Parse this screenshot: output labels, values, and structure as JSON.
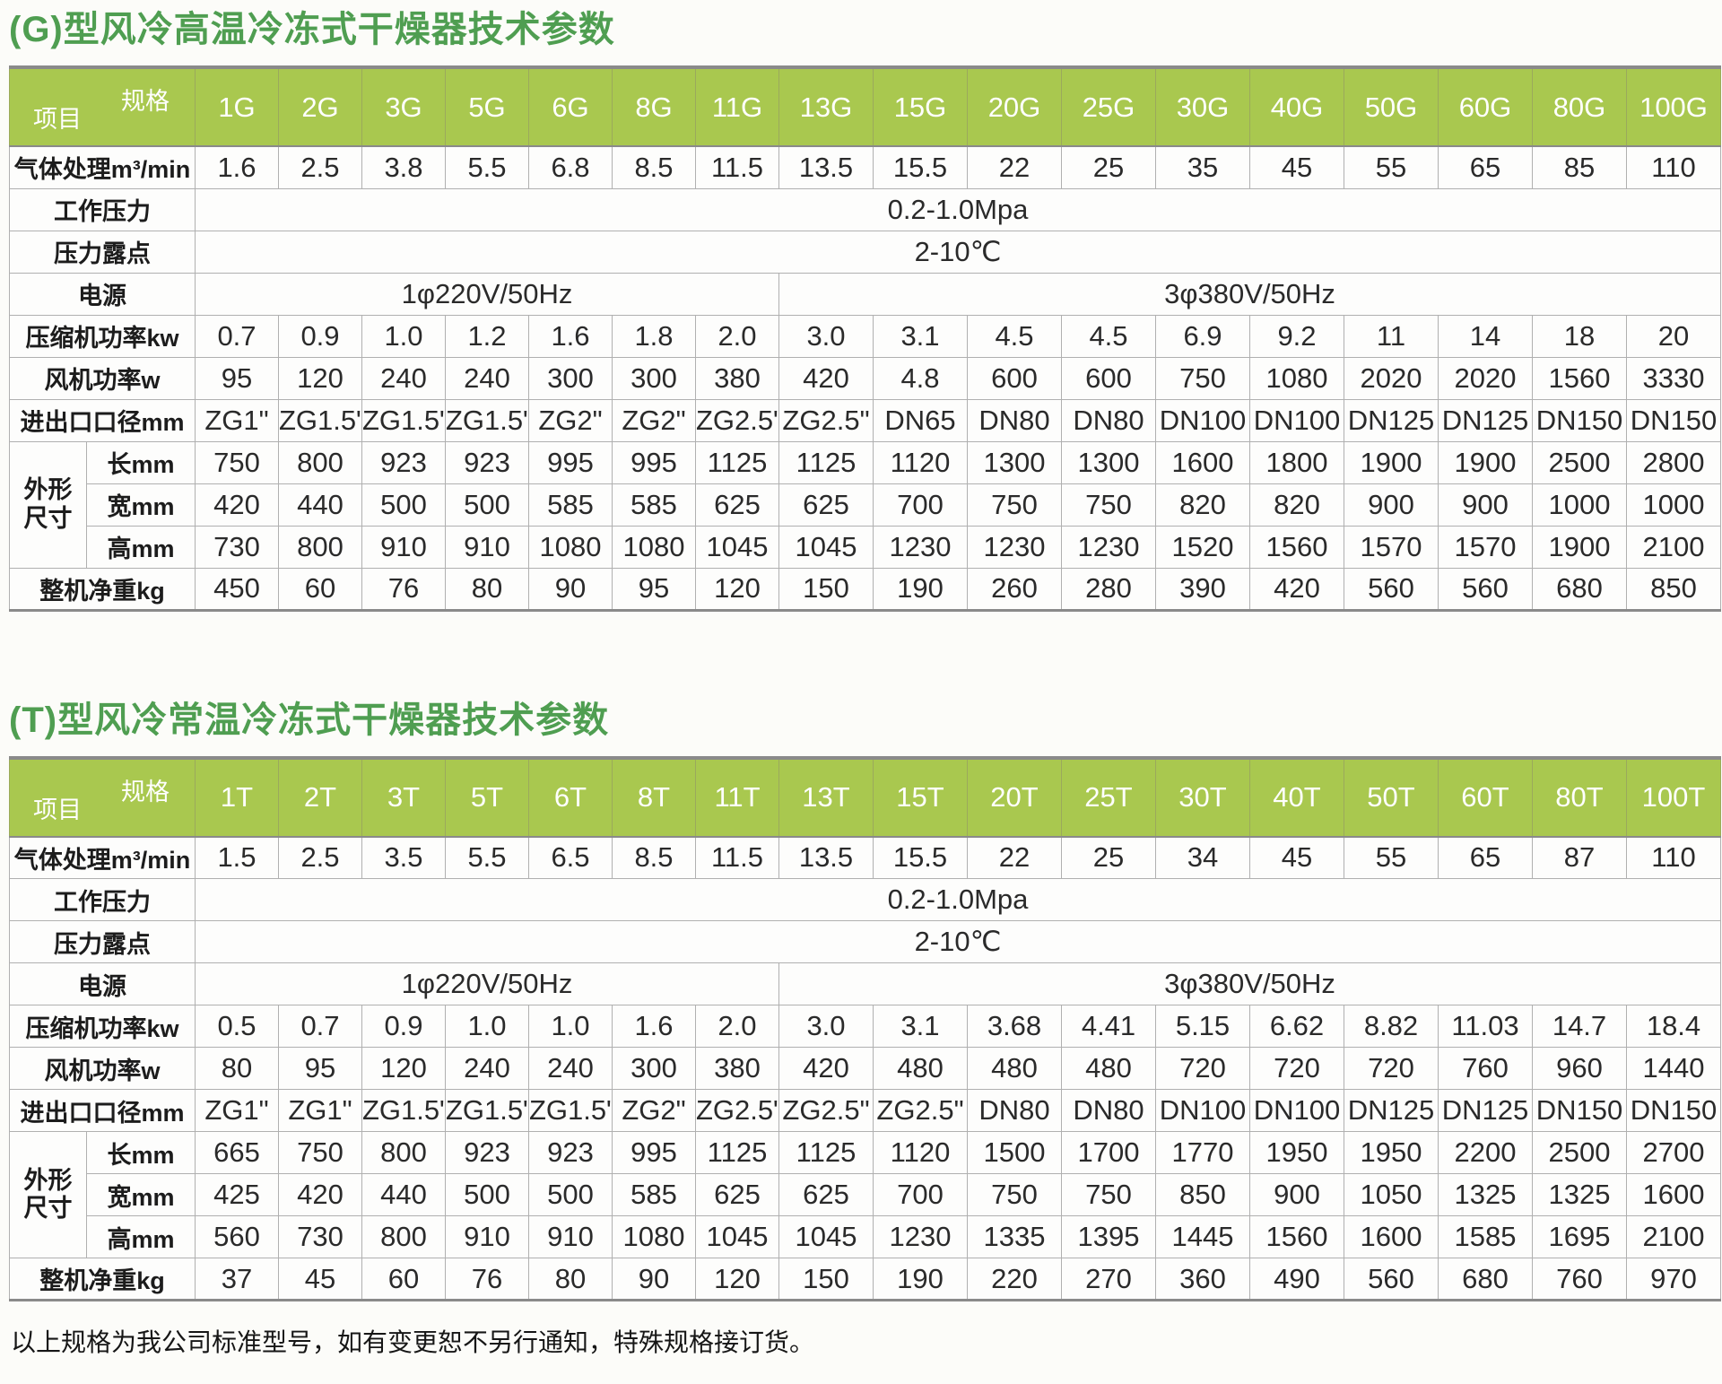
{
  "footnote": "以上规格为我公司标准型号，如有变更恕不另行通知，特殊规格接订货。",
  "colors": {
    "title_green": "#4f9e51",
    "header_green": "#a9c84f",
    "header_text": "#ffffff"
  },
  "tables": [
    {
      "title": "(G)型风冷高温冷冻式干燥器技术参数",
      "corner": {
        "spec": "规格",
        "item": "项目"
      },
      "models": [
        "1G",
        "2G",
        "3G",
        "5G",
        "6G",
        "8G",
        "11G",
        "13G",
        "15G",
        "20G",
        "25G",
        "30G",
        "40G",
        "50G",
        "60G",
        "80G",
        "100G"
      ],
      "rows": [
        {
          "kind": "values",
          "label": "气体处理m³/min",
          "values": [
            "1.6",
            "2.5",
            "3.8",
            "5.5",
            "6.8",
            "8.5",
            "11.5",
            "13.5",
            "15.5",
            "22",
            "25",
            "35",
            "45",
            "55",
            "65",
            "85",
            "110"
          ]
        },
        {
          "kind": "span",
          "label": "工作压力",
          "value": "0.2-1.0Mpa"
        },
        {
          "kind": "span",
          "label": "压力露点",
          "value": "2-10℃"
        },
        {
          "kind": "split",
          "label": "电源",
          "cells": [
            {
              "value": "1φ220V/50Hz",
              "span": 7
            },
            {
              "value": "3φ380V/50Hz",
              "span": 10
            }
          ]
        },
        {
          "kind": "values",
          "label": "压缩机功率kw",
          "values": [
            "0.7",
            "0.9",
            "1.0",
            "1.2",
            "1.6",
            "1.8",
            "2.0",
            "3.0",
            "3.1",
            "4.5",
            "4.5",
            "6.9",
            "9.2",
            "11",
            "14",
            "18",
            "20"
          ]
        },
        {
          "kind": "values",
          "label": "风机功率w",
          "values": [
            "95",
            "120",
            "240",
            "240",
            "300",
            "300",
            "380",
            "420",
            "4.8",
            "600",
            "600",
            "750",
            "1080",
            "2020",
            "2020",
            "1560",
            "3330"
          ]
        },
        {
          "kind": "values",
          "label": "进出口口径mm",
          "values": [
            "ZG1\"",
            "ZG1.5\"",
            "ZG1.5\"",
            "ZG1.5\"",
            "ZG2\"",
            "ZG2\"",
            "ZG2.5\"",
            "ZG2.5\"",
            "DN65",
            "DN80",
            "DN80",
            "DN100",
            "DN100",
            "DN125",
            "DN125",
            "DN150",
            "DN150"
          ]
        },
        {
          "kind": "group",
          "label": "外形尺寸",
          "subrows": [
            {
              "label": "长mm",
              "values": [
                "750",
                "800",
                "923",
                "923",
                "995",
                "995",
                "1125",
                "1125",
                "1120",
                "1300",
                "1300",
                "1600",
                "1800",
                "1900",
                "1900",
                "2500",
                "2800"
              ]
            },
            {
              "label": "宽mm",
              "values": [
                "420",
                "440",
                "500",
                "500",
                "585",
                "585",
                "625",
                "625",
                "700",
                "750",
                "750",
                "820",
                "820",
                "900",
                "900",
                "1000",
                "1000"
              ]
            },
            {
              "label": "高mm",
              "values": [
                "730",
                "800",
                "910",
                "910",
                "1080",
                "1080",
                "1045",
                "1045",
                "1230",
                "1230",
                "1230",
                "1520",
                "1560",
                "1570",
                "1570",
                "1900",
                "2100"
              ]
            }
          ]
        },
        {
          "kind": "values",
          "label": "整机净重kg",
          "values": [
            "450",
            "60",
            "76",
            "80",
            "90",
            "95",
            "120",
            "150",
            "190",
            "260",
            "280",
            "390",
            "420",
            "560",
            "560",
            "680",
            "850"
          ]
        }
      ]
    },
    {
      "title": "(T)型风冷常温冷冻式干燥器技术参数",
      "corner": {
        "spec": "规格",
        "item": "项目"
      },
      "models": [
        "1T",
        "2T",
        "3T",
        "5T",
        "6T",
        "8T",
        "11T",
        "13T",
        "15T",
        "20T",
        "25T",
        "30T",
        "40T",
        "50T",
        "60T",
        "80T",
        "100T"
      ],
      "rows": [
        {
          "kind": "values",
          "label": "气体处理m³/min",
          "values": [
            "1.5",
            "2.5",
            "3.5",
            "5.5",
            "6.5",
            "8.5",
            "11.5",
            "13.5",
            "15.5",
            "22",
            "25",
            "34",
            "45",
            "55",
            "65",
            "87",
            "110"
          ]
        },
        {
          "kind": "span",
          "label": "工作压力",
          "value": "0.2-1.0Mpa"
        },
        {
          "kind": "span",
          "label": "压力露点",
          "value": "2-10℃"
        },
        {
          "kind": "split",
          "label": "电源",
          "cells": [
            {
              "value": "1φ220V/50Hz",
              "span": 7
            },
            {
              "value": "3φ380V/50Hz",
              "span": 10
            }
          ]
        },
        {
          "kind": "values",
          "label": "压缩机功率kw",
          "values": [
            "0.5",
            "0.7",
            "0.9",
            "1.0",
            "1.0",
            "1.6",
            "2.0",
            "3.0",
            "3.1",
            "3.68",
            "4.41",
            "5.15",
            "6.62",
            "8.82",
            "11.03",
            "14.7",
            "18.4"
          ]
        },
        {
          "kind": "values",
          "label": "风机功率w",
          "values": [
            "80",
            "95",
            "120",
            "240",
            "240",
            "300",
            "380",
            "420",
            "480",
            "480",
            "480",
            "720",
            "720",
            "720",
            "760",
            "960",
            "1440"
          ]
        },
        {
          "kind": "values",
          "label": "进出口口径mm",
          "values": [
            "ZG1\"",
            "ZG1\"",
            "ZG1.5\"",
            "ZG1.5\"",
            "ZG1.5\"",
            "ZG2\"",
            "ZG2.5\"",
            "ZG2.5\"",
            "ZG2.5\"",
            "DN80",
            "DN80",
            "DN100",
            "DN100",
            "DN125",
            "DN125",
            "DN150",
            "DN150"
          ]
        },
        {
          "kind": "group",
          "label": "外形尺寸",
          "subrows": [
            {
              "label": "长mm",
              "values": [
                "665",
                "750",
                "800",
                "923",
                "923",
                "995",
                "1125",
                "1125",
                "1120",
                "1500",
                "1700",
                "1770",
                "1950",
                "1950",
                "2200",
                "2500",
                "2700"
              ]
            },
            {
              "label": "宽mm",
              "values": [
                "425",
                "420",
                "440",
                "500",
                "500",
                "585",
                "625",
                "625",
                "700",
                "750",
                "750",
                "850",
                "900",
                "1050",
                "1325",
                "1325",
                "1600"
              ]
            },
            {
              "label": "高mm",
              "values": [
                "560",
                "730",
                "800",
                "910",
                "910",
                "1080",
                "1045",
                "1045",
                "1230",
                "1335",
                "1395",
                "1445",
                "1560",
                "1600",
                "1585",
                "1695",
                "2100"
              ]
            }
          ]
        },
        {
          "kind": "values",
          "label": "整机净重kg",
          "values": [
            "37",
            "45",
            "60",
            "76",
            "80",
            "90",
            "120",
            "150",
            "190",
            "220",
            "270",
            "360",
            "490",
            "560",
            "680",
            "760",
            "970"
          ]
        }
      ]
    }
  ]
}
